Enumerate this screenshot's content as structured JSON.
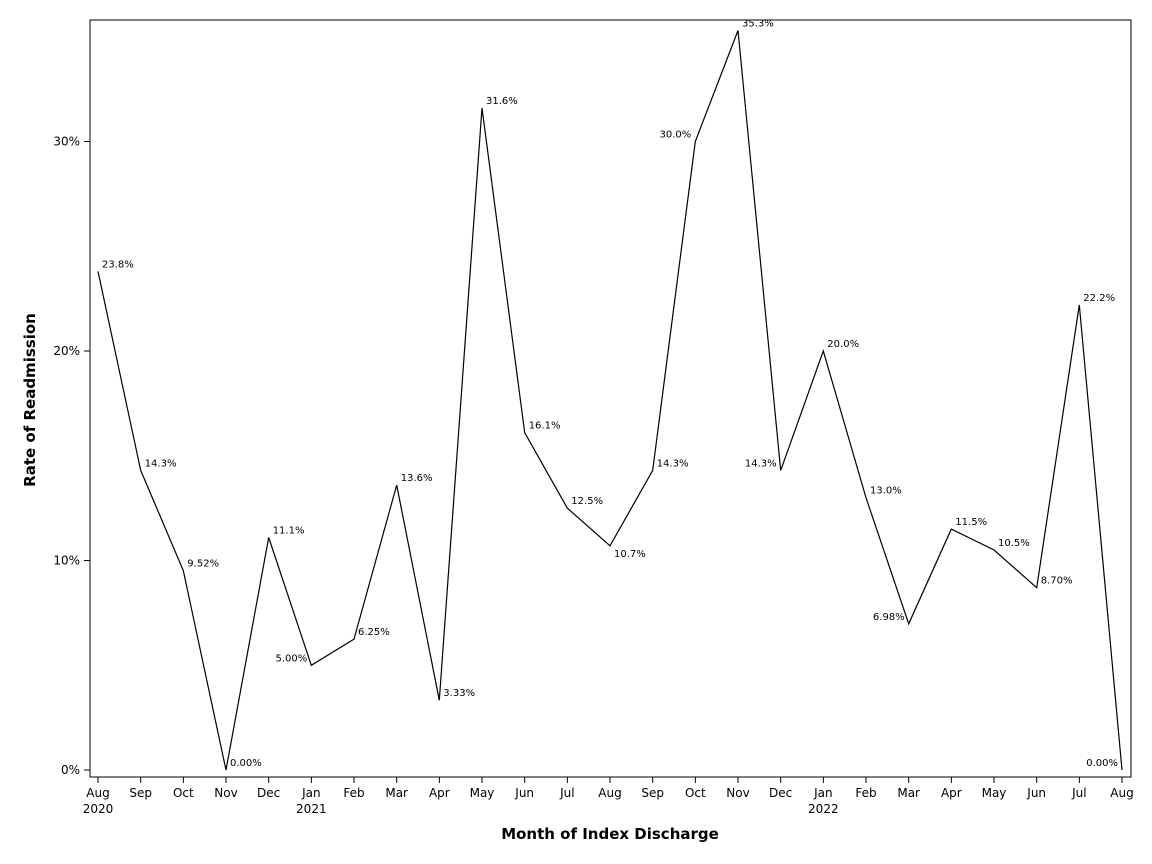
{
  "chart_data": {
    "type": "line",
    "xlabel": "Month of Index Discharge",
    "ylabel": "Rate of Readmission",
    "ylim": [
      0,
      35.5
    ],
    "y_ticks": [
      {
        "value": 0,
        "label": "0%"
      },
      {
        "value": 10,
        "label": "10%"
      },
      {
        "value": 20,
        "label": "20%"
      },
      {
        "value": 30,
        "label": "30%"
      }
    ],
    "categories": [
      "Aug",
      "Sep",
      "Oct",
      "Nov",
      "Dec",
      "Jan",
      "Feb",
      "Mar",
      "Apr",
      "May",
      "Jun",
      "Jul",
      "Aug",
      "Sep",
      "Oct",
      "Nov",
      "Dec",
      "Jan",
      "Feb",
      "Mar",
      "Apr",
      "May",
      "Jun",
      "Jul",
      "Aug"
    ],
    "year_labels": [
      {
        "index": 0,
        "label": "2020"
      },
      {
        "index": 5,
        "label": "2021"
      },
      {
        "index": 17,
        "label": "2022"
      }
    ],
    "series": [
      {
        "values": [
          23.8,
          14.3,
          9.52,
          0.0,
          11.1,
          5.0,
          6.25,
          13.6,
          3.33,
          31.6,
          16.1,
          12.5,
          10.7,
          14.3,
          30.0,
          35.3,
          14.3,
          20.0,
          13.0,
          6.98,
          11.5,
          10.5,
          8.7,
          22.2,
          0.0
        ],
        "labels": [
          "23.8%",
          "14.3%",
          "9.52%",
          "0.00%",
          "11.1%",
          "5.00%",
          "6.25%",
          "13.6%",
          "3.33%",
          "31.6%",
          "16.1%",
          "12.5%",
          "10.7%",
          "14.3%",
          "30.0%",
          "35.3%",
          "14.3%",
          "20.0%",
          "13.0%",
          "6.98%",
          "11.5%",
          "10.5%",
          "8.70%",
          "22.2%",
          "0.00%"
        ],
        "color": "#000000"
      }
    ],
    "grid": false,
    "legend": "none"
  }
}
